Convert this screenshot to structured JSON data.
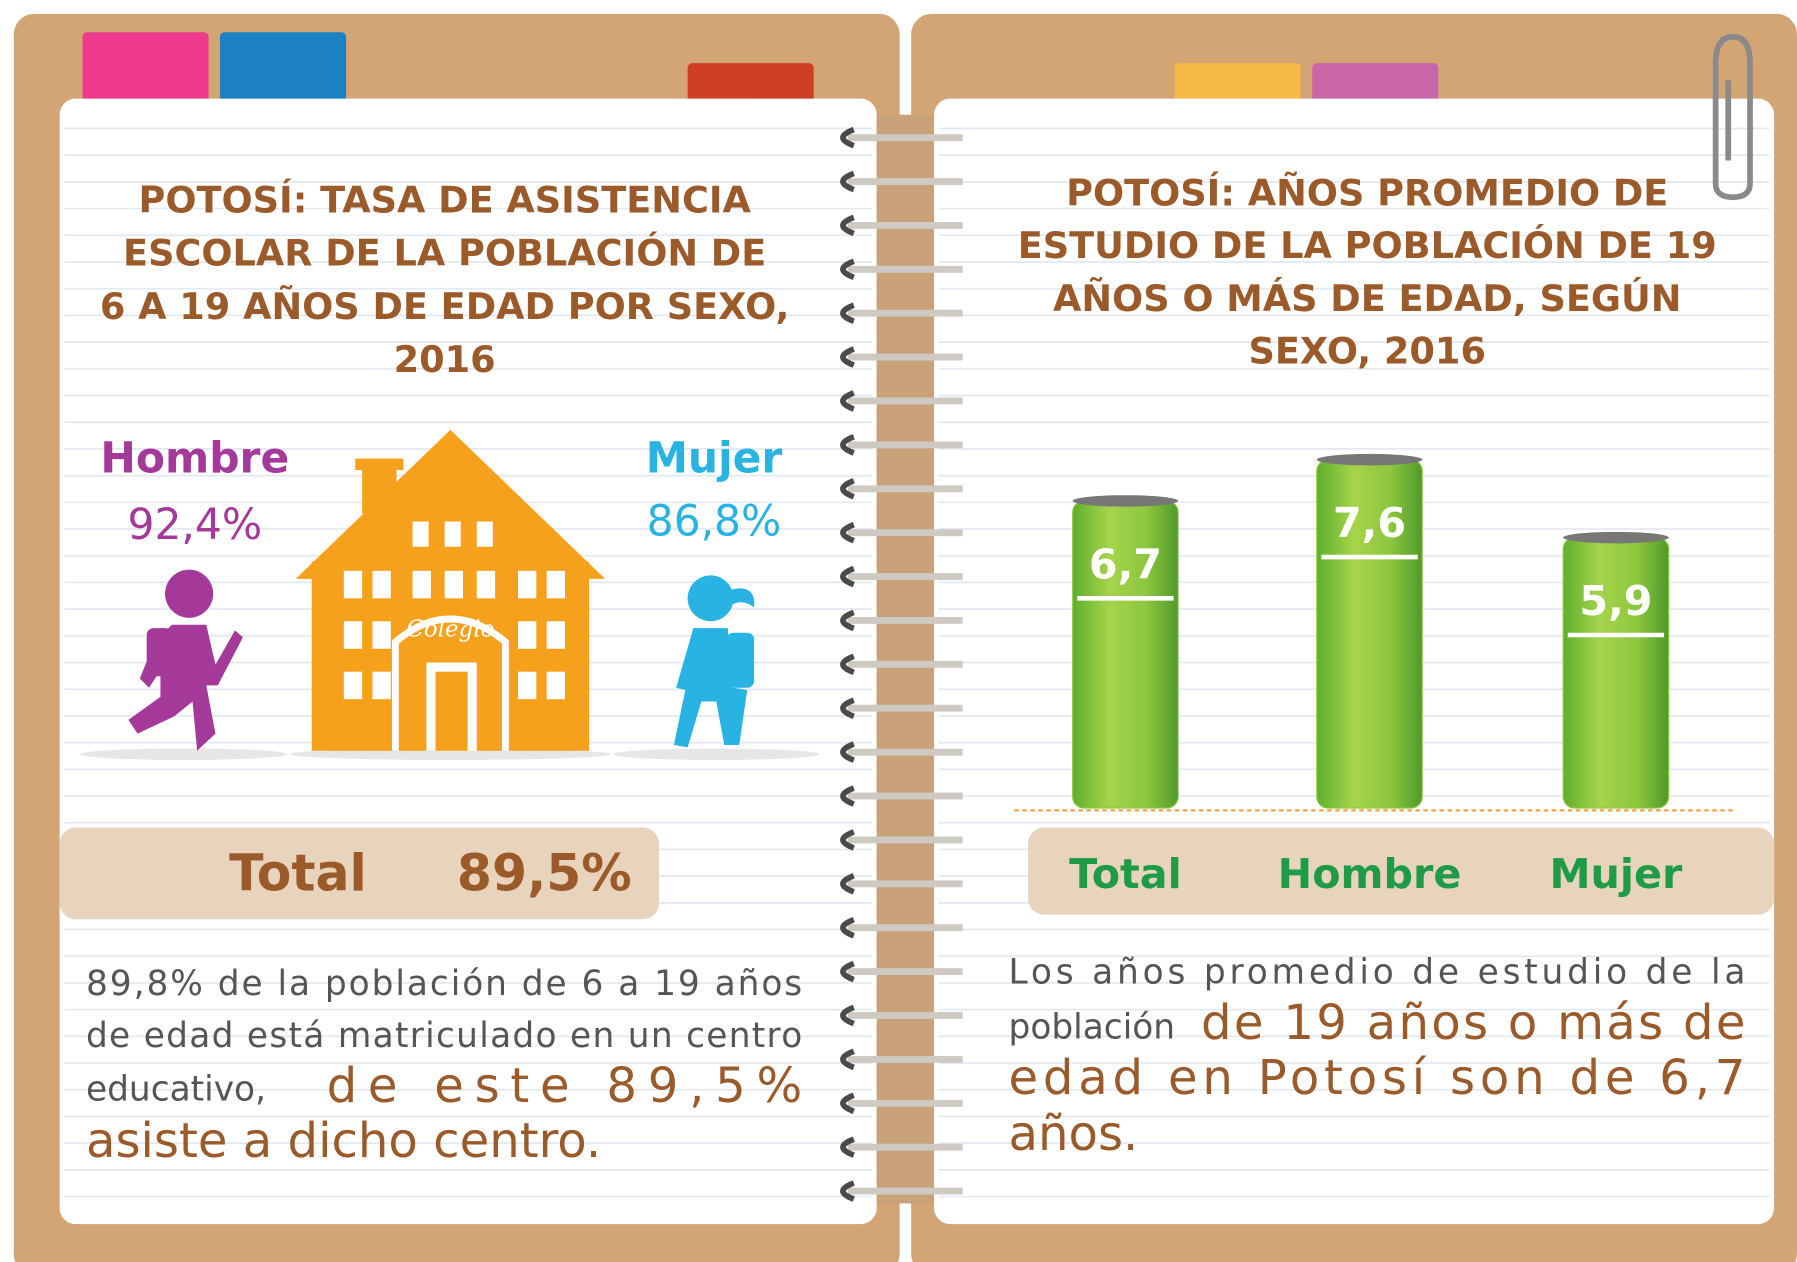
{
  "left": {
    "title": [
      "POTOSÍ: TASA DE ASISTENCIA",
      "ESCOLAR DE LA POBLACIÓN DE",
      "6 A 19 AÑOS DE EDAD POR SEXO,",
      "2016"
    ],
    "hombre": {
      "label": "Hombre",
      "value": "92,4%"
    },
    "mujer": {
      "label": "Mujer",
      "value": "86,8%"
    },
    "sign": "Colegio",
    "total": {
      "label": "Total",
      "value": "89,5%"
    },
    "note_small": [
      "89,8% de la población de 6 a 19 años",
      "de edad está matriculado en un centro",
      "educativo,"
    ],
    "note_large": [
      "de este 89,5%",
      "asiste a dicho centro."
    ]
  },
  "chart_data": {
    "type": "bar",
    "title": [
      "POTOSÍ: AÑOS PROMEDIO DE",
      "ESTUDIO DE LA POBLACIÓN DE 19",
      "AÑOS O MÁS DE EDAD, SEGÚN",
      "SEXO, 2016"
    ],
    "categories": [
      "Total",
      "Hombre",
      "Mujer"
    ],
    "values": [
      6.7,
      7.6,
      5.9
    ],
    "value_labels": [
      "6,7",
      "7,6",
      "5,9"
    ],
    "color": "#8dc63f"
  },
  "right": {
    "note_small": [
      "Los años promedio de estudio de la",
      "población"
    ],
    "note_large": [
      "de 19 años o más de",
      "edad en Potosí son de 6,7",
      "años."
    ]
  }
}
